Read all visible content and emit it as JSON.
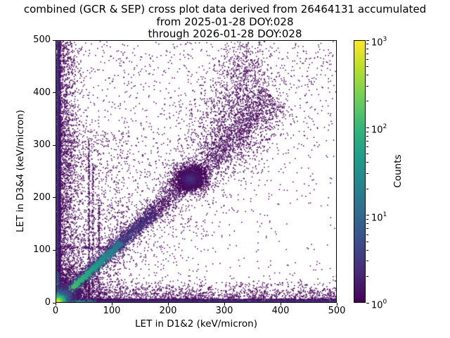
{
  "title": {
    "line1": "combined (GCR & SEP) cross plot data derived from 26464131 accumulated",
    "line2": "from 2025-01-28 DOY:028",
    "line3": "through 2026-01-28 DOY:028"
  },
  "chart_data": {
    "type": "scatter",
    "subtype": "2d-histogram-density-cross-plot",
    "title": "combined (GCR & SEP) cross plot data derived from 26464131 accumulated from 2025-01-28 DOY:028 through 2026-01-28 DOY:028",
    "accumulated_events": "26464131",
    "date_from": "2025-01-28 DOY:028",
    "date_through": "2026-01-28 DOY:028",
    "xlabel": "LET in D1&2 (keV/micron)",
    "ylabel": "LET in D3&4 (keV/micron)",
    "xlim": [
      0,
      500
    ],
    "ylim": [
      0,
      500
    ],
    "xticks": [
      0,
      100,
      200,
      300,
      400,
      500
    ],
    "yticks": [
      0,
      100,
      200,
      300,
      400,
      500
    ],
    "grid": false,
    "colorbar": {
      "label": "Counts",
      "scale": "log",
      "min": 1,
      "max": 1000,
      "tick_exponents": [
        0,
        1,
        2,
        3
      ],
      "colormap": "viridis",
      "color_low": "#440154",
      "color_high": "#fde725"
    },
    "features": [
      {
        "kind": "rect",
        "name": "sparse-field",
        "x0": 0,
        "x1": 500,
        "y0": 0,
        "y1": 500,
        "n": 750,
        "t": 0.0
      },
      {
        "kind": "rect",
        "name": "sparse-left-half",
        "x0": 0,
        "x1": 270,
        "y0": 0,
        "y1": 500,
        "n": 800,
        "t": 0.0
      },
      {
        "kind": "ridge",
        "name": "diagonal-corridor-haze",
        "x1": 0,
        "y1": 0,
        "x2": 500,
        "y2": 500,
        "w1": 30,
        "w2": 70,
        "n": 1300,
        "t0": 0.0,
        "t1": 0.0
      },
      {
        "kind": "edge",
        "name": "left-edge-haze",
        "axis": "y",
        "sigma": 18,
        "n": 2000,
        "t": 0.0
      },
      {
        "kind": "edge",
        "name": "bottom-edge-haze",
        "axis": "x",
        "sigma": 18,
        "n": 2000,
        "t": 0.0
      },
      {
        "kind": "rect",
        "name": "lower-left-field",
        "x0": 0,
        "x1": 130,
        "y0": 0,
        "y1": 330,
        "n": 900,
        "t": 0.0
      },
      {
        "kind": "rect",
        "name": "vertical-streak-1",
        "x0": 56,
        "x1": 59,
        "y0": 0,
        "y1": 310,
        "n": 260,
        "t": 0.04
      },
      {
        "kind": "rect",
        "name": "vertical-streak-2",
        "x0": 63,
        "x1": 66,
        "y0": 0,
        "y1": 260,
        "n": 190,
        "t": 0.03
      },
      {
        "kind": "rect",
        "name": "vertical-streak-3",
        "x0": 74,
        "x1": 77,
        "y0": 0,
        "y1": 200,
        "n": 140,
        "t": 0.03
      },
      {
        "kind": "rect",
        "name": "horizontal-streak",
        "x0": 0,
        "x1": 120,
        "y0": 103,
        "y1": 108,
        "n": 150,
        "t": 0.03
      },
      {
        "kind": "gauss",
        "name": "upper-plume",
        "x": 332,
        "y": 425,
        "sx": 26,
        "sy": 55,
        "n": 800,
        "t0": 0.02,
        "t1": 0.0
      },
      {
        "kind": "gauss",
        "name": "mid-plume",
        "x": 305,
        "y": 330,
        "sx": 38,
        "sy": 50,
        "n": 800,
        "t0": 0.02,
        "t1": 0.0
      },
      {
        "kind": "gauss",
        "name": "left-mid-bulge",
        "x": 10,
        "y": 280,
        "sx": 18,
        "sy": 90,
        "n": 700,
        "t0": 0.02,
        "t1": 0.0
      },
      {
        "kind": "ridge",
        "name": "identity-band-far",
        "x1": 255,
        "y1": 255,
        "x2": 390,
        "y2": 390,
        "w1": 14,
        "w2": 22,
        "n": 1200,
        "t0": 0.03,
        "t1": 0.0
      },
      {
        "kind": "ridge",
        "name": "identity-band",
        "x1": 40,
        "y1": 40,
        "x2": 255,
        "y2": 255,
        "w1": 7,
        "w2": 11,
        "n": 2200,
        "t0": 0.06,
        "t1": 0.02
      },
      {
        "kind": "gauss",
        "name": "hotspot-cluster",
        "x": 240,
        "y": 237,
        "sx": 14,
        "sy": 12,
        "n": 2400,
        "t0": 0.1,
        "t1": 0.0
      },
      {
        "kind": "gauss",
        "name": "hotspot-cluster-core",
        "x": 238,
        "y": 236,
        "sx": 6,
        "sy": 5,
        "n": 800,
        "t0": 0.16,
        "t1": 0.06
      },
      {
        "kind": "rect",
        "name": "left-column",
        "x0": 0,
        "x1": 7,
        "y0": 0,
        "y1": 500,
        "n": 2400,
        "t": 0.05
      },
      {
        "kind": "rect",
        "name": "left-column-lower-extra",
        "x0": 0,
        "x1": 7,
        "y0": 0,
        "y1": 330,
        "n": 700,
        "t": 0.05
      },
      {
        "kind": "rect",
        "name": "left-column-core",
        "x0": 0,
        "x1": 2.5,
        "y0": 0,
        "y1": 500,
        "n": 1100,
        "t": 0.16
      },
      {
        "kind": "rect",
        "name": "bottom-band",
        "x0": 0,
        "x1": 500,
        "y0": 0,
        "y1": 7,
        "n": 2400,
        "t": 0.05
      },
      {
        "kind": "rect",
        "name": "bottom-band-left-extra",
        "x0": 0,
        "x1": 250,
        "y0": 0,
        "y1": 7,
        "n": 800,
        "t": 0.05
      },
      {
        "kind": "rect",
        "name": "bottom-band-core",
        "x0": 0,
        "x1": 500,
        "y0": 0,
        "y1": 2.5,
        "n": 1300,
        "t": 0.15
      },
      {
        "kind": "gauss",
        "name": "origin-cloud",
        "x": 14,
        "y": 14,
        "sx": 26,
        "sy": 26,
        "n": 3200,
        "t0": 0.08,
        "t1": 0.0
      },
      {
        "kind": "ridge",
        "name": "identity-ridge-mid",
        "x1": 10,
        "y1": 10,
        "x2": 175,
        "y2": 175,
        "w1": 4,
        "w2": 6,
        "n": 1500,
        "t0": 0.35,
        "t1": 0.1
      },
      {
        "kind": "ridge",
        "name": "identity-ridge-bright",
        "x1": 0,
        "y1": 0,
        "x2": 115,
        "y2": 115,
        "w1": 2.2,
        "w2": 3.2,
        "n": 1500,
        "t0": 0.8,
        "t1": 0.38
      },
      {
        "kind": "ridge",
        "name": "bottom-band-green",
        "x1": 2,
        "y1": 2,
        "x2": 70,
        "y2": 2,
        "w1": 2,
        "w2": 2,
        "n": 240,
        "t0": 0.75,
        "t1": 0.25
      },
      {
        "kind": "ridge",
        "name": "left-column-teal",
        "x1": 1.5,
        "y1": 2,
        "x2": 1.5,
        "y2": 60,
        "w1": 1.5,
        "w2": 1.5,
        "n": 160,
        "t0": 0.6,
        "t1": 0.2
      },
      {
        "kind": "gauss",
        "name": "origin-glow",
        "x": 7,
        "y": 7,
        "sx": 11,
        "sy": 11,
        "n": 2200,
        "t0": 0.5,
        "t1": 0.12
      },
      {
        "kind": "gauss",
        "name": "origin-hotspot",
        "x": 3,
        "y": 3,
        "sx": 4.5,
        "sy": 4.5,
        "n": 1500,
        "t0": 1.0,
        "t1": 0.6
      }
    ]
  }
}
